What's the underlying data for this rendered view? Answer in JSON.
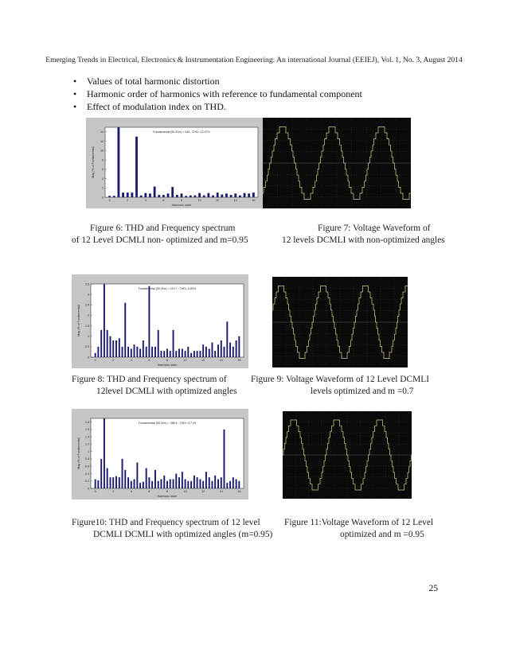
{
  "header": "Emerging Trends in Electrical, Electronics & Instrumentation Engineering: An international Journal (EEIEJ), Vol. 1, No. 3, August 2014",
  "bullets": [
    "Values of total harmonic distortion",
    "Harmonic order of harmonics with reference to fundamental component",
    "Effect of modulation index on THD."
  ],
  "captions": {
    "fig6": [
      "Figure 6: THD and Frequency spectrum",
      "of 12 Level DCMLI non- optimized and m=0.95"
    ],
    "fig7": [
      "Figure 7: Voltage Waveform of",
      "12 levels DCMLI with non-optimized angles"
    ],
    "fig8": [
      "Figure 8: THD and Frequency spectrum of",
      "12level DCMLI with optimized angles"
    ],
    "fig9": [
      "Figure 9: Voltage Waveform of 12 Level DCMLI",
      "levels optimized and m =0.7"
    ],
    "fig10": [
      "Figure10: THD and Frequency spectrum of 12 level",
      "DCMLI DCMLI with optimized angles (m=0.95)"
    ],
    "fig11": [
      "Figure 11:Voltage Waveform of 12 Level",
      "optimized and m =0.95"
    ]
  },
  "page_number": "25",
  "chart_data": [
    {
      "id": "fig6",
      "type": "bar",
      "title": "Fundamental (50.2Hz) = 245 , THD= 13.97%",
      "xlabel": "Harmonic order",
      "ylabel": "Mag (% of Fundamental)",
      "xlim": [
        -0.5,
        16.5
      ],
      "ylim": [
        0,
        15
      ],
      "xticks": [
        0,
        2,
        4,
        6,
        8,
        10,
        12,
        14,
        16
      ],
      "yticks": [
        0,
        2,
        4,
        6,
        8,
        10,
        12,
        14
      ],
      "x": [
        0,
        0.5,
        1,
        1.5,
        2,
        2.5,
        3,
        3.5,
        4,
        4.5,
        5,
        5.5,
        6,
        6.5,
        7,
        7.5,
        8,
        8.5,
        9,
        9.5,
        10,
        10.5,
        11,
        11.5,
        12,
        12.5,
        13,
        13.5,
        14,
        14.5,
        15,
        15.5,
        16
      ],
      "values": [
        0.3,
        0.3,
        15,
        1,
        1,
        1,
        13,
        0.4,
        0.9,
        0.8,
        2.3,
        0.5,
        0.5,
        0.8,
        2.2,
        0.5,
        0.8,
        0.3,
        0.4,
        0.4,
        0.9,
        0.4,
        0.9,
        0.4,
        1,
        0.6,
        0.8,
        0.5,
        0.8,
        0.4,
        0.9,
        0.8,
        1
      ]
    },
    {
      "id": "fig8",
      "type": "bar",
      "title": "Fundamental (50.2Hz) = 219.7 , THD= 6.60%",
      "xlabel": "Harmonic order",
      "ylabel": "Mag (% of Fundamental)",
      "xlim": [
        -0.5,
        16.5
      ],
      "ylim": [
        0,
        3.5
      ],
      "xticks": [
        0,
        2,
        4,
        6,
        8,
        10,
        12,
        14,
        16
      ],
      "yticks": [
        0,
        0.5,
        1,
        1.5,
        2,
        2.5,
        3,
        3.5
      ],
      "x": [
        0,
        0.33,
        0.67,
        1,
        1.33,
        1.67,
        2,
        2.33,
        2.67,
        3,
        3.33,
        3.67,
        4,
        4.33,
        4.67,
        5,
        5.33,
        5.67,
        6,
        6.33,
        6.67,
        7,
        7.33,
        7.67,
        8,
        8.33,
        8.67,
        9,
        9.33,
        9.67,
        10,
        10.33,
        10.67,
        11,
        11.33,
        11.67,
        12,
        12.33,
        12.67,
        13,
        13.33,
        13.67,
        14,
        14.33,
        14.67,
        15,
        15.33,
        15.67,
        16
      ],
      "values": [
        0.2,
        0.5,
        1.3,
        3.5,
        1.3,
        1,
        0.8,
        0.8,
        0.9,
        0.5,
        2.6,
        0.5,
        0.4,
        0.6,
        0.5,
        0.4,
        0.8,
        0.5,
        3.4,
        0.5,
        0.5,
        1.3,
        0.3,
        0.3,
        0.4,
        0.3,
        1.3,
        0.3,
        0.4,
        0.4,
        0.3,
        0.5,
        0.2,
        0.3,
        0.3,
        0.3,
        0.6,
        0.5,
        0.4,
        0.7,
        0.3,
        0.6,
        0.8,
        0.5,
        1.7,
        0.7,
        0.5,
        0.8,
        1
      ]
    },
    {
      "id": "fig10",
      "type": "bar",
      "title": "Fundamental (50.2Hz) = 286.6 , THD= 3.71%",
      "xlabel": "Harmonic order",
      "ylabel": "Mag (% of Fundamental)",
      "xlim": [
        -0.5,
        16.5
      ],
      "ylim": [
        0,
        1.9
      ],
      "xticks": [
        0,
        2,
        4,
        6,
        8,
        10,
        12,
        14,
        16
      ],
      "yticks": [
        0,
        0.2,
        0.4,
        0.6,
        0.8,
        1,
        1.2,
        1.4,
        1.6,
        1.8
      ],
      "x": [
        0,
        0.33,
        0.67,
        1,
        1.33,
        1.67,
        2,
        2.33,
        2.67,
        3,
        3.33,
        3.67,
        4,
        4.33,
        4.67,
        5,
        5.33,
        5.67,
        6,
        6.33,
        6.67,
        7,
        7.33,
        7.67,
        8,
        8.33,
        8.67,
        9,
        9.33,
        9.67,
        10,
        10.33,
        10.67,
        11,
        11.33,
        11.67,
        12,
        12.33,
        12.67,
        13,
        13.33,
        13.67,
        14,
        14.33,
        14.67,
        15,
        15.33,
        15.67,
        16
      ],
      "values": [
        0.25,
        0.22,
        0.8,
        1.9,
        0.55,
        0.3,
        0.3,
        0.33,
        0.3,
        0.8,
        0.5,
        0.3,
        0.2,
        0.25,
        0.7,
        0.15,
        0.18,
        0.55,
        0.3,
        0.2,
        0.5,
        0.2,
        0.25,
        0.35,
        0.2,
        0.25,
        0.25,
        0.4,
        0.3,
        0.45,
        0.25,
        0.2,
        0.2,
        0.35,
        0.3,
        0.25,
        0.2,
        0.45,
        0.3,
        0.2,
        0.35,
        0.25,
        0.3,
        1.6,
        0.15,
        0.2,
        0.3,
        0.25,
        0.2
      ]
    }
  ],
  "wave_color": "#d8cf86",
  "bar_color": "#1a1a6e"
}
